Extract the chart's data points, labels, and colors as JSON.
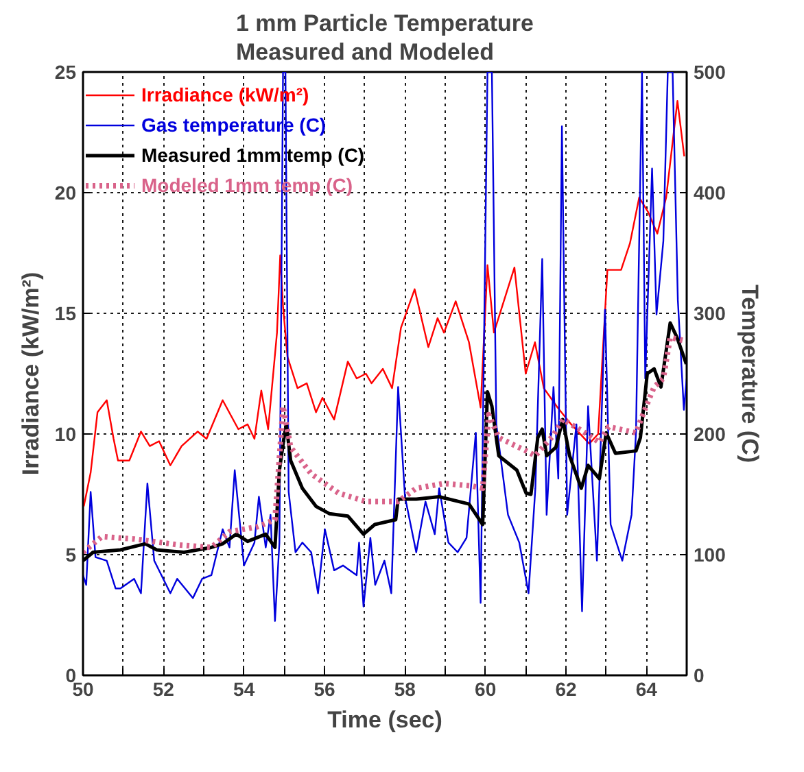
{
  "chart_data": {
    "type": "line",
    "title": "1 mm Particle Temperature\nMeasured and Modeled",
    "xlabel": "Time (sec)",
    "ylabel": "Irradiance (kW/m²)",
    "y2label": "Temperature (C)",
    "xlim": [
      50,
      65
    ],
    "xticks": [
      50,
      {
        "value": 51,
        "label": null
      },
      52,
      {
        "value": 53,
        "label": null
      },
      54,
      {
        "value": 55,
        "label": null
      },
      56,
      {
        "value": 57,
        "label": null
      },
      58,
      {
        "value": 59,
        "label": null
      },
      60,
      {
        "value": 61,
        "label": null
      },
      62,
      {
        "value": 63,
        "label": null
      },
      64,
      {
        "value": 65,
        "label": null
      }
    ],
    "ylim": [
      0,
      25
    ],
    "yticks": [
      0,
      5,
      10,
      15,
      20,
      25
    ],
    "y2lim": [
      0,
      500
    ],
    "y2ticks": [
      0,
      100,
      200,
      300,
      400,
      500
    ],
    "grid": true,
    "legend": "top left",
    "marker": "none",
    "series": [
      {
        "name": "Irradiance (kW/m²)",
        "color": "#ff0000",
        "line_style": "solid",
        "x": [
          50.02,
          50.19,
          50.36,
          50.59,
          50.76,
          50.87,
          51.15,
          51.44,
          51.66,
          51.89,
          52.17,
          52.45,
          52.85,
          53.07,
          53.47,
          53.86,
          54.09,
          54.26,
          54.43,
          54.6,
          54.82,
          54.9,
          54.97,
          55.08,
          55.33,
          55.56,
          55.79,
          55.95,
          56.24,
          56.58,
          56.8,
          57.03,
          57.17,
          57.45,
          57.68,
          57.9,
          58.24,
          58.58,
          58.81,
          58.97,
          59.26,
          59.59,
          59.88,
          60.05,
          60.21,
          60.72,
          61.0,
          61.23,
          61.45,
          61.79,
          62.13,
          62.58,
          62.8,
          63.03,
          63.37,
          63.59,
          63.82,
          64.04,
          64.27,
          64.49,
          64.77,
          64.94
        ],
        "values": [
          7.0,
          8.4,
          10.9,
          11.4,
          9.8,
          8.9,
          8.9,
          10.1,
          9.5,
          9.7,
          8.7,
          9.5,
          10.1,
          9.8,
          11.4,
          10.2,
          10.4,
          9.8,
          11.8,
          10.2,
          14.2,
          17.4,
          15.3,
          13.2,
          11.9,
          12.1,
          10.9,
          11.5,
          10.6,
          13.0,
          12.3,
          12.5,
          12.1,
          12.7,
          11.9,
          14.4,
          16.0,
          13.6,
          14.8,
          14.2,
          15.5,
          13.8,
          11.1,
          17.0,
          14.2,
          16.9,
          12.5,
          13.8,
          11.9,
          11.1,
          10.4,
          9.6,
          10.0,
          16.8,
          16.8,
          17.9,
          19.8,
          19.2,
          18.3,
          19.8,
          23.8,
          21.5
        ]
      },
      {
        "name": "Gas temperature (C)",
        "color": "#0000dd",
        "axis": "y2",
        "line_style": "solid",
        "x": [
          50.0,
          50.08,
          50.19,
          50.31,
          50.59,
          50.81,
          50.93,
          51.27,
          51.44,
          51.6,
          51.77,
          52.17,
          52.34,
          52.73,
          52.96,
          53.19,
          53.47,
          53.64,
          53.77,
          54.0,
          54.26,
          54.37,
          54.54,
          54.66,
          54.77,
          54.88,
          54.97,
          55.03,
          55.11,
          55.28,
          55.45,
          55.67,
          55.84,
          56.01,
          56.24,
          56.46,
          56.8,
          56.86,
          56.97,
          57.14,
          57.26,
          57.49,
          57.66,
          57.83,
          58.0,
          58.28,
          58.51,
          58.74,
          58.85,
          59.08,
          59.31,
          59.53,
          59.76,
          59.88,
          60.05,
          60.16,
          60.27,
          60.56,
          60.84,
          61.07,
          61.24,
          61.41,
          61.52,
          61.69,
          61.81,
          61.9,
          62.03,
          62.26,
          62.4,
          62.55,
          62.77,
          62.97,
          63.11,
          63.4,
          63.63,
          63.74,
          63.89,
          63.97,
          64.14,
          64.25,
          64.42,
          64.53,
          64.65,
          64.78,
          64.93,
          65.0
        ],
        "values": [
          83,
          75,
          152,
          98,
          95,
          72,
          72,
          80,
          68,
          159,
          95,
          68,
          80,
          64,
          80,
          83,
          121,
          106,
          170,
          91,
          110,
          148,
          106,
          133,
          45,
          110,
          500,
          500,
          152,
          102,
          110,
          102,
          68,
          121,
          87,
          91,
          83,
          110,
          57,
          114,
          75,
          95,
          68,
          239,
          148,
          102,
          144,
          117,
          155,
          110,
          102,
          114,
          201,
          60,
          500,
          500,
          208,
          133,
          110,
          68,
          155,
          345,
          133,
          239,
          163,
          455,
          133,
          208,
          53,
          223,
          95,
          303,
          125,
          95,
          133,
          201,
          500,
          246,
          420,
          299,
          360,
          500,
          500,
          311,
          220,
          246
        ]
      },
      {
        "name": "Measured 1mm temp (C)",
        "color": "#000000",
        "axis": "y2",
        "line_style": "solid",
        "x": [
          50.0,
          50.25,
          50.93,
          51.55,
          51.83,
          52.51,
          53.19,
          53.47,
          53.81,
          54.09,
          54.54,
          54.77,
          54.88,
          54.99,
          55.05,
          55.16,
          55.45,
          55.79,
          56.12,
          56.58,
          56.97,
          57.25,
          57.77,
          57.83,
          58.28,
          58.85,
          59.59,
          59.93,
          60.05,
          60.16,
          60.33,
          60.78,
          61.01,
          61.13,
          61.3,
          61.41,
          61.52,
          61.75,
          61.92,
          62.09,
          62.38,
          62.55,
          62.83,
          63.0,
          63.23,
          63.74,
          63.85,
          64.02,
          64.19,
          64.36,
          64.59,
          64.76,
          64.99
        ],
        "values": [
          95,
          102,
          104,
          109,
          104,
          102,
          106,
          109,
          117,
          111,
          117,
          106,
          170,
          196,
          208,
          178,
          155,
          140,
          134,
          132,
          117,
          125,
          129,
          146,
          146,
          148,
          142,
          125,
          235,
          223,
          182,
          170,
          151,
          150,
          197,
          204,
          182,
          189,
          212,
          182,
          155,
          174,
          163,
          201,
          184,
          186,
          197,
          250,
          254,
          239,
          292,
          280,
          258
        ]
      },
      {
        "name": "Modeled 1mm temp (C)",
        "color": "#d9638a",
        "axis": "y2",
        "line_style": "dotted",
        "x": [
          50.0,
          50.47,
          51.27,
          52.4,
          53.19,
          53.64,
          54.32,
          54.77,
          54.97,
          55.16,
          55.67,
          56.35,
          57.03,
          57.83,
          58.28,
          58.97,
          59.65,
          59.93,
          60.08,
          60.33,
          61.01,
          61.24,
          61.69,
          61.92,
          62.38,
          62.83,
          63.06,
          63.74,
          63.91,
          64.19,
          64.42,
          64.59,
          64.99
        ],
        "values": [
          102,
          115,
          113,
          108,
          106,
          119,
          123,
          129,
          223,
          189,
          167,
          151,
          144,
          144,
          155,
          159,
          157,
          155,
          216,
          197,
          186,
          182,
          199,
          212,
          203,
          193,
          206,
          201,
          216,
          239,
          246,
          280,
          277
        ]
      }
    ]
  }
}
